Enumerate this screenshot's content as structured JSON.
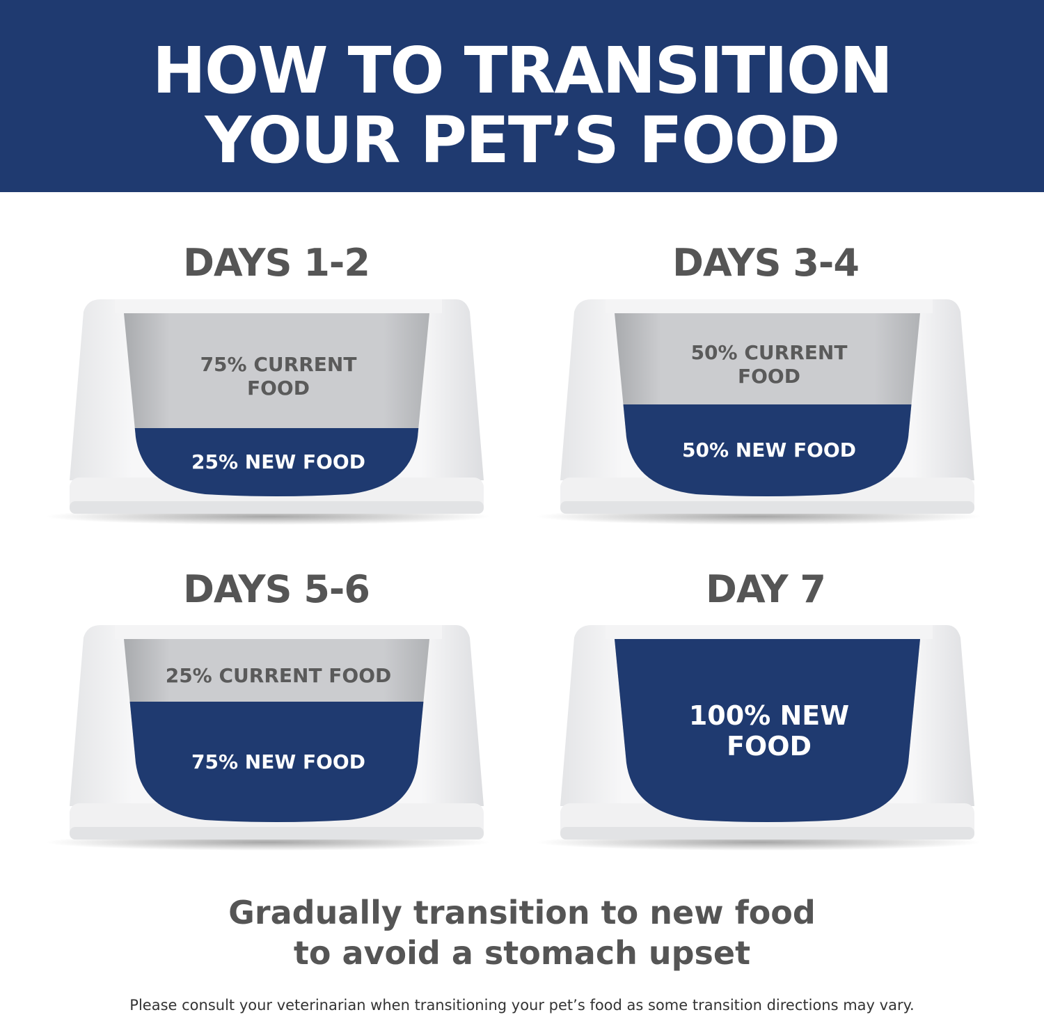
{
  "header": {
    "title_line1": "HOW TO TRANSITION",
    "title_line2": "YOUR PET’S FOOD"
  },
  "colors": {
    "brand_blue": "#1f3a70",
    "current_food_gray": "#c8c9cb",
    "text_gray": "#555555"
  },
  "steps": [
    {
      "heading": "DAYS 1-2",
      "current_label": "75% CURRENT FOOD",
      "new_label": "25% NEW FOOD",
      "new_pct": 25
    },
    {
      "heading": "DAYS 3-4",
      "current_label": "50% CURRENT FOOD",
      "new_label": "50% NEW FOOD",
      "new_pct": 50
    },
    {
      "heading": "DAYS 5-6",
      "current_label": "25% CURRENT FOOD",
      "new_label": "75% NEW FOOD",
      "new_pct": 75
    },
    {
      "heading": "DAY 7",
      "current_label": "",
      "new_label": "100% NEW FOOD",
      "new_pct": 100
    }
  ],
  "tagline": {
    "line1": "Gradually transition to new food",
    "line2": "to avoid a stomach upset"
  },
  "disclaimer": "Please consult your veterinarian when transitioning your pet’s food as some transition directions may vary."
}
